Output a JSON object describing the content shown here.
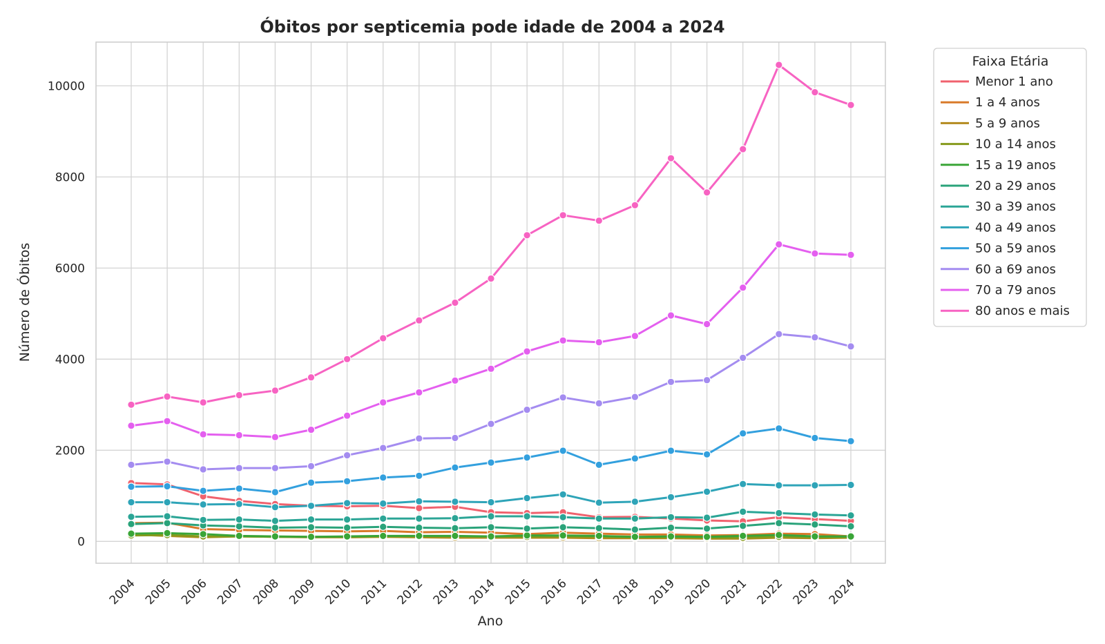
{
  "chart_data": {
    "type": "line",
    "title": "Óbitos por septicemia pode idade de 2004 a 2024",
    "xlabel": "Ano",
    "ylabel": "Número de Óbitos",
    "x": [
      "2004",
      "2005",
      "2006",
      "2007",
      "2008",
      "2009",
      "2010",
      "2011",
      "2012",
      "2013",
      "2014",
      "2015",
      "2016",
      "2017",
      "2018",
      "2019",
      "2020",
      "2021",
      "2022",
      "2023",
      "2024"
    ],
    "yticks": [
      "0",
      "2000",
      "4000",
      "6000",
      "8000",
      "10000"
    ],
    "ylim": [
      -480,
      10960
    ],
    "grid": true,
    "legend": {
      "title": "Faixa Etária",
      "placement": "outside-right"
    },
    "series": [
      {
        "name": "Menor 1 ano",
        "color": "#f0626e",
        "values": [
          1280,
          1250,
          990,
          890,
          820,
          780,
          770,
          780,
          730,
          760,
          640,
          620,
          640,
          530,
          540,
          500,
          460,
          440,
          530,
          490,
          450
        ]
      },
      {
        "name": "1 a 4 anos",
        "color": "#d97a2a",
        "values": [
          400,
          410,
          270,
          250,
          240,
          230,
          220,
          230,
          200,
          210,
          190,
          160,
          190,
          170,
          150,
          150,
          130,
          140,
          170,
          160,
          110
        ]
      },
      {
        "name": "5 a 9 anos",
        "color": "#b38a1e",
        "values": [
          150,
          120,
          90,
          110,
          100,
          90,
          90,
          100,
          90,
          80,
          80,
          80,
          80,
          70,
          70,
          70,
          60,
          60,
          80,
          70,
          80
        ]
      },
      {
        "name": "10 a 14 anos",
        "color": "#869a1c",
        "values": [
          130,
          140,
          110,
          110,
          100,
          100,
          100,
          110,
          110,
          110,
          100,
          100,
          110,
          100,
          90,
          90,
          80,
          80,
          100,
          90,
          90
        ]
      },
      {
        "name": "15 a 19 anos",
        "color": "#3aa537",
        "values": [
          170,
          180,
          160,
          120,
          110,
          100,
          110,
          120,
          120,
          120,
          110,
          130,
          130,
          120,
          100,
          110,
          100,
          120,
          140,
          110,
          110
        ]
      },
      {
        "name": "20 a 29 anos",
        "color": "#2aa37a",
        "values": [
          380,
          400,
          350,
          330,
          300,
          310,
          300,
          320,
          300,
          290,
          310,
          280,
          310,
          290,
          260,
          300,
          280,
          340,
          400,
          370,
          330
        ]
      },
      {
        "name": "30 a 39 anos",
        "color": "#2ba596",
        "values": [
          540,
          550,
          470,
          480,
          450,
          480,
          480,
          500,
          500,
          510,
          550,
          550,
          530,
          500,
          500,
          530,
          520,
          650,
          620,
          590,
          570
        ]
      },
      {
        "name": "40 a 49 anos",
        "color": "#2ea4b8",
        "values": [
          860,
          860,
          810,
          820,
          750,
          780,
          840,
          830,
          880,
          870,
          860,
          950,
          1030,
          850,
          870,
          970,
          1090,
          1260,
          1230,
          1230,
          1240
        ]
      },
      {
        "name": "50 a 59 anos",
        "color": "#33a0de",
        "values": [
          1200,
          1210,
          1110,
          1160,
          1080,
          1290,
          1320,
          1400,
          1440,
          1620,
          1730,
          1840,
          1990,
          1680,
          1820,
          1990,
          1910,
          2370,
          2480,
          2270,
          2200
        ]
      },
      {
        "name": "60 a 69 anos",
        "color": "#a48cf0",
        "values": [
          1680,
          1750,
          1580,
          1610,
          1610,
          1650,
          1890,
          2050,
          2260,
          2270,
          2580,
          2890,
          3160,
          3030,
          3170,
          3500,
          3540,
          4030,
          4550,
          4480,
          4280
        ]
      },
      {
        "name": "70 a 79 anos",
        "color": "#e45fef",
        "values": [
          2540,
          2640,
          2350,
          2330,
          2290,
          2450,
          2760,
          3050,
          3270,
          3530,
          3790,
          4170,
          4410,
          4370,
          4510,
          4960,
          4770,
          5570,
          6520,
          6320,
          6290
        ]
      },
      {
        "name": "80 anos e mais",
        "color": "#f763c2",
        "values": [
          3000,
          3180,
          3050,
          3210,
          3310,
          3600,
          4000,
          4460,
          4850,
          5240,
          5770,
          6720,
          7160,
          7040,
          7380,
          8410,
          7660,
          8610,
          10460,
          9860,
          9580
        ]
      }
    ]
  }
}
